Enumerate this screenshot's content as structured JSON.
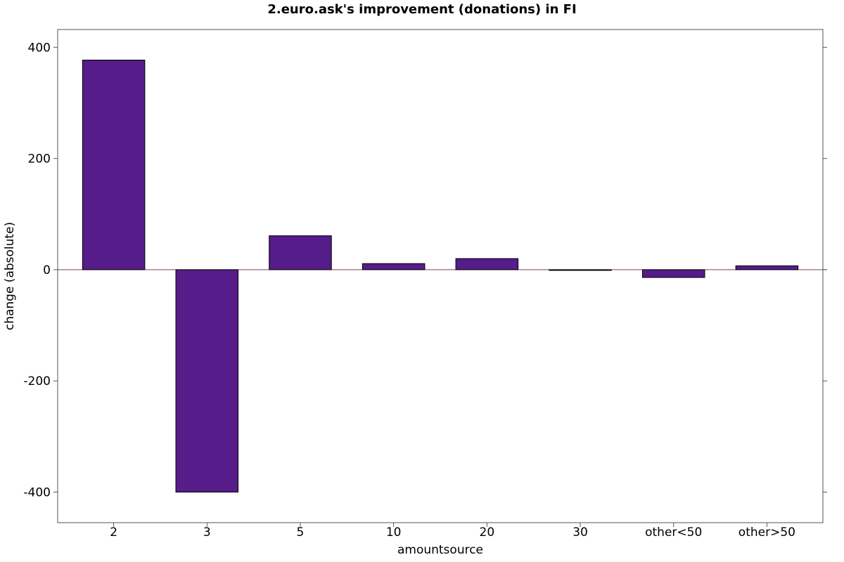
{
  "chart_data": {
    "type": "bar",
    "title": "2.euro.ask's improvement (donations) in FI",
    "xlabel": "amountsource",
    "ylabel": "change (absolute)",
    "categories": [
      "2",
      "3",
      "5",
      "10",
      "20",
      "30",
      "other<50",
      "other>50"
    ],
    "values": [
      377,
      -400,
      61,
      11,
      20,
      -1,
      -14,
      7
    ],
    "ylim": [
      -455,
      432
    ],
    "yticks": [
      400,
      200,
      0,
      -200,
      -400
    ],
    "ytick_labels": [
      "400",
      "200",
      "0",
      "-200",
      "-400"
    ],
    "grid": false,
    "bar_color": "#561c8a",
    "zero_line_color": "#7b3f6e"
  }
}
